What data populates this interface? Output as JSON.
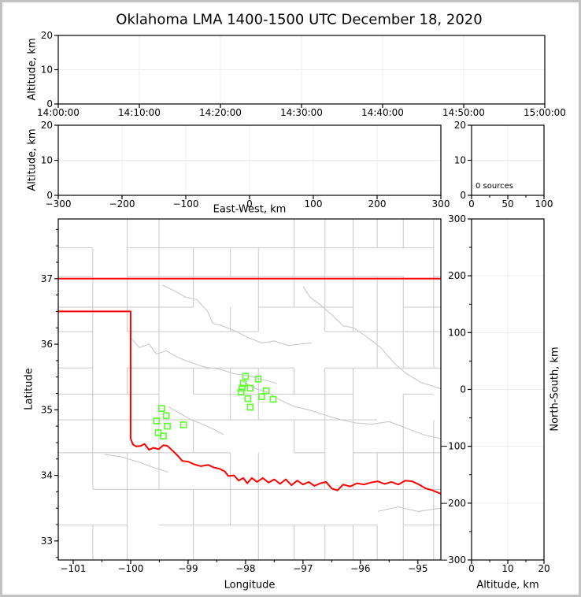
{
  "figure": {
    "title": "Oklahoma LMA 1400-1500 UTC December 18, 2020"
  },
  "chart_data": {
    "type": "scatter",
    "title": "Oklahoma LMA 1400-1500 UTC December 18, 2020",
    "subtitle": "",
    "legend": null,
    "panels": {
      "time_height": {
        "xlabel": "",
        "ylabel": "Altitude, km",
        "x_tick_labels": [
          "14:00:00",
          "14:10:00",
          "14:20:00",
          "14:30:00",
          "14:40:00",
          "14:50:00",
          "15:00:00"
        ],
        "x_tick_values": [
          0,
          10,
          20,
          30,
          40,
          50,
          60
        ],
        "x_range": [
          0,
          60
        ],
        "y_tick_labels": [
          "0",
          "10",
          "20"
        ],
        "y_tick_values": [
          0,
          10,
          20
        ],
        "y_range": [
          0,
          20
        ],
        "points": []
      },
      "ew_height": {
        "xlabel": "East-West, km",
        "ylabel": "Altitude, km",
        "x_tick_labels": [
          "−300",
          "−200",
          "−100",
          "0",
          "100",
          "200",
          "300"
        ],
        "x_tick_values": [
          -300,
          -200,
          -100,
          0,
          100,
          200,
          300
        ],
        "x_range": [
          -300,
          300
        ],
        "y_tick_labels": [
          "0",
          "10",
          "20"
        ],
        "y_tick_values": [
          0,
          10,
          20
        ],
        "y_range": [
          0,
          20
        ],
        "points": []
      },
      "alt_histogram": {
        "annotation": "0 sources",
        "x_tick_labels": [
          "0",
          "50",
          "100"
        ],
        "x_tick_values": [
          0,
          50,
          100
        ],
        "x_range": [
          0,
          100
        ],
        "y_tick_labels": [
          "0",
          "10",
          "20"
        ],
        "y_tick_values": [
          0,
          10,
          20
        ],
        "y_range": [
          0,
          20
        ],
        "counts": []
      },
      "map": {
        "xlabel": "Longitude",
        "ylabel": "Latitude",
        "x_tick_labels": [
          "−101",
          "−100",
          "−99",
          "−98",
          "−97",
          "−96",
          "−95"
        ],
        "x_tick_values": [
          -101,
          -100,
          -99,
          -98,
          -97,
          -96,
          -95
        ],
        "x_range": [
          -101.26,
          -94.6
        ],
        "y_tick_labels": [
          "33",
          "34",
          "35",
          "36",
          "37"
        ],
        "y_tick_values": [
          33,
          34,
          35,
          36,
          37
        ],
        "y_range": [
          32.71,
          37.91
        ],
        "points": []
      },
      "ns_height": {
        "xlabel": "Altitude, km",
        "ylabel": "North-South, km",
        "x_tick_labels": [
          "0",
          "10",
          "20"
        ],
        "x_tick_values": [
          0,
          10,
          20
        ],
        "x_range": [
          0,
          20
        ],
        "y_tick_labels": [
          "300",
          "200",
          "100",
          "0",
          "−100",
          "−200",
          "−300"
        ],
        "y_tick_values": [
          300,
          200,
          100,
          0,
          -100,
          -200,
          -300
        ],
        "y_range": [
          -300,
          300
        ],
        "points": []
      }
    },
    "lma_stations": [
      [
        -98.0,
        35.51
      ],
      [
        -97.78,
        35.47
      ],
      [
        -98.04,
        35.4
      ],
      [
        -98.06,
        35.33
      ],
      [
        -97.92,
        35.33
      ],
      [
        -98.08,
        35.27
      ],
      [
        -97.64,
        35.29
      ],
      [
        -97.72,
        35.2
      ],
      [
        -97.96,
        35.17
      ],
      [
        -97.52,
        35.16
      ],
      [
        -97.92,
        35.04
      ],
      [
        -99.46,
        35.02
      ],
      [
        -99.38,
        34.91
      ],
      [
        -99.55,
        34.83
      ],
      [
        -99.36,
        34.75
      ],
      [
        -99.08,
        34.77
      ],
      [
        -99.52,
        34.65
      ],
      [
        -99.43,
        34.6
      ]
    ],
    "oklahoma_border": [
      [
        [
          -101.26,
          37.0
        ],
        [
          -94.6,
          37.0
        ]
      ],
      [
        [
          -101.26,
          36.5
        ],
        [
          -100.0,
          36.5
        ],
        [
          -100.0,
          34.56
        ]
      ],
      [
        [
          -100.0,
          34.56
        ],
        [
          -99.96,
          34.47
        ],
        [
          -99.9,
          34.44
        ],
        [
          -99.82,
          34.45
        ],
        [
          -99.76,
          34.48
        ],
        [
          -99.68,
          34.39
        ],
        [
          -99.6,
          34.42
        ],
        [
          -99.51,
          34.4
        ],
        [
          -99.43,
          34.46
        ],
        [
          -99.36,
          34.45
        ],
        [
          -99.26,
          34.37
        ],
        [
          -99.18,
          34.3
        ],
        [
          -99.1,
          34.22
        ],
        [
          -99.0,
          34.21
        ],
        [
          -98.9,
          34.17
        ],
        [
          -98.78,
          34.14
        ],
        [
          -98.65,
          34.16
        ],
        [
          -98.55,
          34.12
        ],
        [
          -98.45,
          34.1
        ],
        [
          -98.36,
          34.06
        ],
        [
          -98.3,
          33.99
        ],
        [
          -98.2,
          34.0
        ],
        [
          -98.12,
          33.92
        ],
        [
          -98.04,
          33.96
        ],
        [
          -97.97,
          33.88
        ],
        [
          -97.89,
          33.96
        ],
        [
          -97.8,
          33.9
        ],
        [
          -97.7,
          33.96
        ],
        [
          -97.6,
          33.89
        ],
        [
          -97.5,
          33.94
        ],
        [
          -97.4,
          33.87
        ],
        [
          -97.3,
          33.94
        ],
        [
          -97.2,
          33.85
        ],
        [
          -97.1,
          33.92
        ],
        [
          -97.0,
          33.86
        ],
        [
          -96.9,
          33.9
        ],
        [
          -96.8,
          33.84
        ],
        [
          -96.7,
          33.88
        ],
        [
          -96.6,
          33.9
        ],
        [
          -96.5,
          33.8
        ],
        [
          -96.4,
          33.77
        ],
        [
          -96.3,
          33.86
        ],
        [
          -96.18,
          33.83
        ],
        [
          -96.06,
          33.88
        ],
        [
          -95.94,
          33.86
        ],
        [
          -95.82,
          33.89
        ],
        [
          -95.7,
          33.91
        ],
        [
          -95.58,
          33.87
        ],
        [
          -95.46,
          33.9
        ],
        [
          -95.34,
          33.86
        ],
        [
          -95.22,
          33.92
        ],
        [
          -95.1,
          33.91
        ],
        [
          -94.98,
          33.86
        ],
        [
          -94.86,
          33.8
        ],
        [
          -94.74,
          33.77
        ],
        [
          -94.6,
          33.72
        ]
      ]
    ],
    "rivers": [
      [
        [
          -99.45,
          36.9
        ],
        [
          -99.25,
          36.82
        ],
        [
          -99.05,
          36.72
        ],
        [
          -98.85,
          36.68
        ],
        [
          -98.66,
          36.5
        ],
        [
          -98.57,
          36.32
        ],
        [
          -98.4,
          36.28
        ],
        [
          -98.18,
          36.2
        ],
        [
          -97.95,
          36.1
        ],
        [
          -97.72,
          36.02
        ],
        [
          -97.5,
          36.05
        ],
        [
          -97.25,
          35.98
        ],
        [
          -97.05,
          36.0
        ],
        [
          -96.85,
          36.02
        ]
      ],
      [
        [
          -97.0,
          36.88
        ],
        [
          -96.88,
          36.72
        ],
        [
          -96.7,
          36.6
        ],
        [
          -96.5,
          36.45
        ],
        [
          -96.3,
          36.28
        ],
        [
          -96.12,
          36.25
        ],
        [
          -95.9,
          36.12
        ],
        [
          -95.65,
          35.95
        ],
        [
          -95.4,
          35.7
        ],
        [
          -95.2,
          35.55
        ],
        [
          -94.95,
          35.42
        ],
        [
          -94.6,
          35.32
        ]
      ],
      [
        [
          -100.0,
          36.1
        ],
        [
          -99.85,
          35.95
        ],
        [
          -99.68,
          36.0
        ],
        [
          -99.55,
          35.85
        ],
        [
          -99.38,
          35.9
        ],
        [
          -99.18,
          35.8
        ],
        [
          -98.95,
          35.72
        ],
        [
          -98.7,
          35.65
        ],
        [
          -98.45,
          35.62
        ],
        [
          -98.2,
          35.55
        ],
        [
          -97.95,
          35.52
        ],
        [
          -97.7,
          35.46
        ],
        [
          -97.45,
          35.4
        ]
      ],
      [
        [
          -98.05,
          35.43
        ],
        [
          -97.85,
          35.33
        ],
        [
          -97.62,
          35.27
        ],
        [
          -97.4,
          35.15
        ],
        [
          -97.15,
          35.05
        ],
        [
          -96.9,
          35.0
        ],
        [
          -96.62,
          34.92
        ],
        [
          -96.35,
          34.85
        ],
        [
          -96.08,
          34.8
        ],
        [
          -95.8,
          34.78
        ],
        [
          -95.5,
          34.82
        ],
        [
          -95.2,
          34.72
        ],
        [
          -94.9,
          34.62
        ],
        [
          -94.6,
          34.56
        ]
      ],
      [
        [
          -99.35,
          35.05
        ],
        [
          -99.15,
          34.95
        ],
        [
          -98.95,
          34.85
        ],
        [
          -98.75,
          34.78
        ],
        [
          -98.55,
          34.7
        ],
        [
          -98.38,
          34.62
        ]
      ],
      [
        [
          -100.45,
          34.32
        ],
        [
          -100.15,
          34.28
        ],
        [
          -99.85,
          34.2
        ],
        [
          -99.6,
          34.12
        ],
        [
          -99.35,
          34.05
        ]
      ],
      [
        [
          -95.7,
          33.45
        ],
        [
          -95.35,
          33.52
        ],
        [
          -95.0,
          33.45
        ],
        [
          -94.6,
          33.5
        ]
      ]
    ],
    "colors": {
      "state_border": "#ff0000",
      "county_lines": "#c8c8c8",
      "station_marker": "#5fff32",
      "gridline": "#ececec",
      "frame": "#000000",
      "figure_border": "#c2c2c2"
    }
  }
}
